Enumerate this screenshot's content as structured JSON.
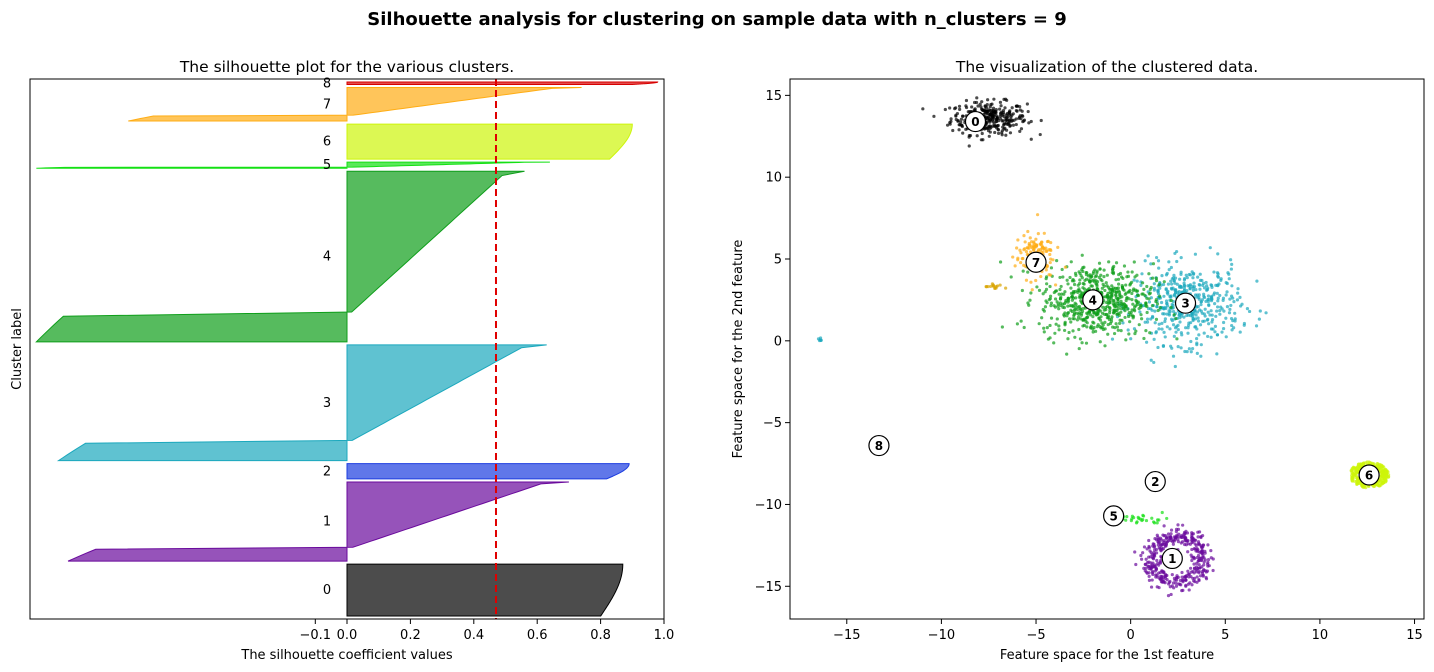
{
  "figure": {
    "suptitle": "Silhouette analysis for clustering on sample data with n_clusters = 9"
  },
  "colors": {
    "clusters": [
      "#000000",
      "#6a0a9c",
      "#1c3de0",
      "#1ba8bd",
      "#0e9e1a",
      "#14e014",
      "#cdf50a",
      "#ffad14",
      "#d70000"
    ],
    "avg_line": "#e00000"
  },
  "chart_data": [
    {
      "type": "area",
      "title": "The silhouette plot for the various clusters.",
      "xlabel": "The silhouette coefficient values",
      "ylabel": "Cluster label",
      "xlim": [
        -1.0,
        1.0
      ],
      "xticks": [
        -0.1,
        0.0,
        0.2,
        0.4,
        0.6,
        0.8,
        1.0
      ],
      "xtick_labels": [
        "−0.1",
        "0.0",
        "0.2",
        "0.4",
        "0.6",
        "0.8",
        "1.0"
      ],
      "average_silhouette": 0.47,
      "clusters": [
        {
          "label": "0",
          "min": 0.0,
          "max": 0.87,
          "size": 170
        },
        {
          "label": "1",
          "min": -0.88,
          "max": 0.7,
          "size": 260
        },
        {
          "label": "2",
          "min": 0.0,
          "max": 0.89,
          "size": 50
        },
        {
          "label": "3",
          "min": -0.91,
          "max": 0.63,
          "size": 380
        },
        {
          "label": "4",
          "min": -0.98,
          "max": 0.56,
          "size": 560
        },
        {
          "label": "5",
          "min": -0.98,
          "max": 0.64,
          "size": 20
        },
        {
          "label": "6",
          "min": 0.0,
          "max": 0.9,
          "size": 115
        },
        {
          "label": "7",
          "min": -0.69,
          "max": 0.74,
          "size": 110
        },
        {
          "label": "8",
          "min": 0.0,
          "max": 0.98,
          "size": 8
        }
      ]
    },
    {
      "type": "scatter",
      "title": "The visualization of the clustered data.",
      "xlabel": "Feature space for the 1st feature",
      "ylabel": "Feature space for the 2nd feature",
      "xlim": [
        -18,
        15.5
      ],
      "ylim": [
        -17,
        16
      ],
      "xticks": [
        -15,
        -10,
        -5,
        0,
        5,
        10,
        15
      ],
      "xtick_labels": [
        "−15",
        "−10",
        "−5",
        "0",
        "5",
        "10",
        "15"
      ],
      "yticks": [
        -15,
        -10,
        -5,
        0,
        5,
        10,
        15
      ],
      "ytick_labels": [
        "−15",
        "−10",
        "−5",
        "0",
        "5",
        "10",
        "15"
      ],
      "centers": [
        {
          "label": "0",
          "x": -8.2,
          "y": 13.4
        },
        {
          "label": "1",
          "x": 2.2,
          "y": -13.3
        },
        {
          "label": "2",
          "x": 1.3,
          "y": -8.6
        },
        {
          "label": "3",
          "x": 2.9,
          "y": 2.3
        },
        {
          "label": "4",
          "x": -2.0,
          "y": 2.5
        },
        {
          "label": "5",
          "x": -0.9,
          "y": -10.7
        },
        {
          "label": "6",
          "x": 12.6,
          "y": -8.2
        },
        {
          "label": "7",
          "x": -5.0,
          "y": 4.8
        },
        {
          "label": "8",
          "x": -13.3,
          "y": -6.4
        }
      ],
      "point_clouds": [
        {
          "cluster": 0,
          "cx": -7.5,
          "cy": 13.6,
          "sx": 1.0,
          "sy": 0.5,
          "n": 320,
          "color": "#000000"
        },
        {
          "cluster": 1,
          "cx": 2.4,
          "cy": -13.4,
          "sx": 1.1,
          "sy": 1.2,
          "n": 380,
          "color": "#6a0a9c"
        },
        {
          "cluster": 2,
          "cx": 1.4,
          "cy": -8.7,
          "sx": 0.15,
          "sy": 0.2,
          "n": 20,
          "color": "#1c3de0"
        },
        {
          "cluster": 3,
          "cx": 3.0,
          "cy": 2.2,
          "sx": 1.4,
          "sy": 1.2,
          "n": 480,
          "color": "#1ba8bd"
        },
        {
          "cluster": 4,
          "cx": -1.8,
          "cy": 2.5,
          "sx": 1.5,
          "sy": 1.1,
          "n": 620,
          "color": "#0e9e1a"
        },
        {
          "cluster": 5,
          "cx": 0.4,
          "cy": -10.9,
          "sx": 0.8,
          "sy": 0.15,
          "n": 30,
          "color": "#14e014"
        },
        {
          "cluster": 6,
          "cx": 12.6,
          "cy": -8.2,
          "sx": 0.8,
          "sy": 0.5,
          "n": 260,
          "color": "#cdf50a"
        },
        {
          "cluster": 7,
          "cx": -5.1,
          "cy": 5.2,
          "sx": 0.5,
          "sy": 0.7,
          "n": 140,
          "color": "#ffad14"
        },
        {
          "cluster": 7,
          "cx": -7.2,
          "cy": 3.3,
          "sx": 0.25,
          "sy": 0.1,
          "n": 15,
          "color": "#d9a400"
        },
        {
          "cluster": 3,
          "cx": -16.4,
          "cy": 0.1,
          "sx": 0.05,
          "sy": 0.08,
          "n": 6,
          "color": "#1ba8bd"
        }
      ]
    }
  ]
}
